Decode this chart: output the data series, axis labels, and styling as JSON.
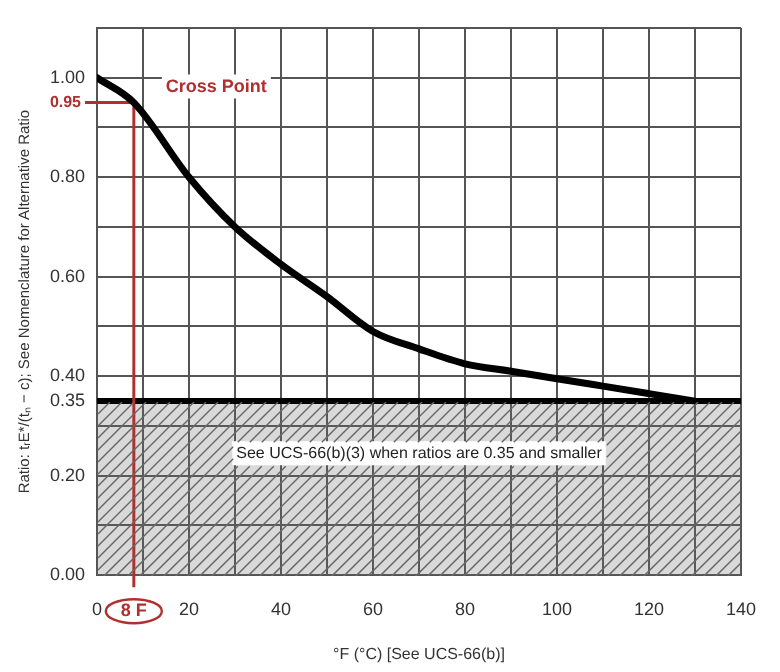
{
  "chart_data": {
    "type": "line",
    "xlabel": "°F (°C) [See UCS-66(b)]",
    "ylabel": "Ratio: tᵣE*/(tₙ − c); See Nomenclature for Alternative Ratio",
    "x": [
      0,
      8,
      20,
      30,
      40,
      50,
      60,
      70,
      80,
      90,
      100,
      110,
      120,
      130
    ],
    "series": [
      {
        "color": "#000000",
        "values": [
          1.0,
          0.95,
          0.8,
          0.7,
          0.625,
          0.56,
          0.49,
          0.455,
          0.425,
          0.41,
          0.395,
          0.38,
          0.365,
          0.35
        ]
      }
    ],
    "xlim": [
      0,
      140
    ],
    "xticks": [
      0,
      {
        "value": 10,
        "label": null
      },
      20,
      {
        "value": 30,
        "label": null
      },
      40,
      {
        "value": 50,
        "label": null
      },
      60,
      {
        "value": 70,
        "label": null
      },
      80,
      {
        "value": 90,
        "label": null
      },
      100,
      {
        "value": 110,
        "label": null
      },
      120,
      {
        "value": 130,
        "label": null
      },
      140
    ],
    "ylim": [
      0,
      1.1
    ],
    "yticks": [
      {
        "value": 0,
        "label": "0.00"
      },
      {
        "value": 0.1,
        "label": null
      },
      {
        "value": 0.2,
        "label": "0.20"
      },
      {
        "value": 0.3,
        "label": null
      },
      {
        "value": 0.35,
        "label": "0.35"
      },
      {
        "value": 0.4,
        "label": "0.40"
      },
      {
        "value": 0.5,
        "label": null
      },
      {
        "value": 0.6,
        "label": "0.60"
      },
      {
        "value": 0.7,
        "label": null
      },
      {
        "value": 0.8,
        "label": "0.80"
      },
      {
        "value": 0.9,
        "label": null
      },
      {
        "value": 1.0,
        "label": "1.00"
      },
      {
        "value": 1.1,
        "label": null
      }
    ],
    "grid": true,
    "legend": false,
    "marker": "none",
    "line_style": "solid",
    "ref_lines": [
      {
        "axis": "y",
        "value": 0.35,
        "label": null,
        "color": "#000000"
      },
      {
        "axis": "y",
        "value": 0.95,
        "label": "0.95",
        "color": "#b03030"
      },
      {
        "axis": "x",
        "value": 8,
        "label": "8 F",
        "color": "#b03030"
      }
    ],
    "bands": [
      {
        "axis": "y",
        "from": 0,
        "to": 0.35,
        "label": "See UCS-66(b)(3) when ratios are 0.35 and smaller",
        "color": "#666666"
      }
    ],
    "annotations": [
      {
        "text": "Cross Point",
        "x": 8,
        "y": 0.95
      }
    ]
  }
}
